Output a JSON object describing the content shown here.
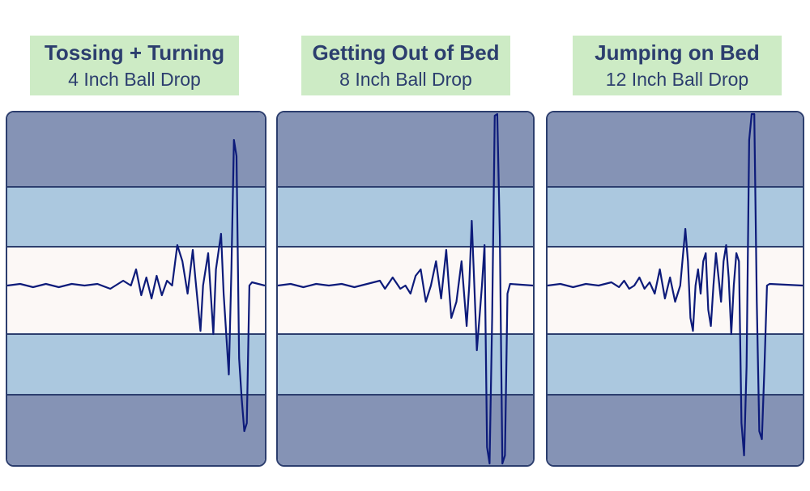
{
  "panels": [
    {
      "title": "Tossing + Turning",
      "subtitle": "4 Inch Ball Drop",
      "spikes": [
        [
          0.0,
          0.0
        ],
        [
          0.05,
          0.01
        ],
        [
          0.1,
          -0.01
        ],
        [
          0.15,
          0.01
        ],
        [
          0.2,
          -0.01
        ],
        [
          0.25,
          0.01
        ],
        [
          0.3,
          0.0
        ],
        [
          0.35,
          0.01
        ],
        [
          0.4,
          -0.02
        ],
        [
          0.45,
          0.03
        ],
        [
          0.48,
          0.0
        ],
        [
          0.5,
          0.1
        ],
        [
          0.52,
          -0.06
        ],
        [
          0.54,
          0.05
        ],
        [
          0.56,
          -0.08
        ],
        [
          0.58,
          0.06
        ],
        [
          0.6,
          -0.06
        ],
        [
          0.62,
          0.03
        ],
        [
          0.64,
          0.0
        ],
        [
          0.66,
          0.25
        ],
        [
          0.68,
          0.15
        ],
        [
          0.7,
          -0.05
        ],
        [
          0.72,
          0.22
        ],
        [
          0.73,
          0.05
        ],
        [
          0.75,
          -0.28
        ],
        [
          0.76,
          0.0
        ],
        [
          0.78,
          0.2
        ],
        [
          0.8,
          -0.3
        ],
        [
          0.81,
          0.1
        ],
        [
          0.83,
          0.32
        ],
        [
          0.84,
          -0.05
        ],
        [
          0.86,
          -0.55
        ],
        [
          0.87,
          0.1
        ],
        [
          0.88,
          0.9
        ],
        [
          0.89,
          0.8
        ],
        [
          0.9,
          -0.45
        ],
        [
          0.91,
          -0.7
        ],
        [
          0.92,
          -0.9
        ],
        [
          0.93,
          -0.85
        ],
        [
          0.94,
          0.0
        ],
        [
          0.95,
          0.02
        ],
        [
          1.0,
          0.0
        ]
      ],
      "spike_length": 1.0
    },
    {
      "title": "Getting Out of Bed",
      "subtitle": "8 Inch Ball Drop",
      "spikes": [
        [
          0.0,
          0.0
        ],
        [
          0.05,
          0.01
        ],
        [
          0.1,
          -0.01
        ],
        [
          0.15,
          0.01
        ],
        [
          0.2,
          0.0
        ],
        [
          0.25,
          0.01
        ],
        [
          0.3,
          -0.01
        ],
        [
          0.35,
          0.01
        ],
        [
          0.4,
          0.03
        ],
        [
          0.42,
          -0.02
        ],
        [
          0.45,
          0.05
        ],
        [
          0.48,
          -0.02
        ],
        [
          0.5,
          0.0
        ],
        [
          0.52,
          -0.05
        ],
        [
          0.54,
          0.06
        ],
        [
          0.56,
          0.1
        ],
        [
          0.58,
          -0.1
        ],
        [
          0.6,
          0.0
        ],
        [
          0.62,
          0.15
        ],
        [
          0.64,
          -0.08
        ],
        [
          0.66,
          0.22
        ],
        [
          0.67,
          0.0
        ],
        [
          0.68,
          -0.2
        ],
        [
          0.7,
          -0.1
        ],
        [
          0.72,
          0.15
        ],
        [
          0.74,
          -0.25
        ],
        [
          0.75,
          0.0
        ],
        [
          0.76,
          0.4
        ],
        [
          0.77,
          0.0
        ],
        [
          0.78,
          -0.4
        ],
        [
          0.79,
          -0.2
        ],
        [
          0.8,
          0.0
        ],
        [
          0.81,
          0.25
        ],
        [
          0.82,
          -1.0
        ],
        [
          0.83,
          -1.1
        ],
        [
          0.84,
          -0.2
        ],
        [
          0.85,
          1.05
        ],
        [
          0.86,
          1.3
        ],
        [
          0.87,
          0.3
        ],
        [
          0.88,
          -1.1
        ],
        [
          0.89,
          -1.05
        ],
        [
          0.9,
          -0.05
        ],
        [
          0.91,
          0.01
        ],
        [
          1.0,
          0.0
        ]
      ],
      "spike_length": 1.0
    },
    {
      "title": "Jumping on Bed",
      "subtitle": "12 Inch Ball Drop",
      "spikes": [
        [
          0.0,
          0.0
        ],
        [
          0.05,
          0.01
        ],
        [
          0.1,
          -0.01
        ],
        [
          0.15,
          0.01
        ],
        [
          0.2,
          0.0
        ],
        [
          0.25,
          0.02
        ],
        [
          0.28,
          -0.01
        ],
        [
          0.3,
          0.03
        ],
        [
          0.32,
          -0.02
        ],
        [
          0.34,
          0.0
        ],
        [
          0.36,
          0.05
        ],
        [
          0.38,
          -0.02
        ],
        [
          0.4,
          0.02
        ],
        [
          0.42,
          -0.05
        ],
        [
          0.44,
          0.1
        ],
        [
          0.46,
          -0.08
        ],
        [
          0.48,
          0.05
        ],
        [
          0.5,
          -0.1
        ],
        [
          0.52,
          0.0
        ],
        [
          0.54,
          0.35
        ],
        [
          0.55,
          0.15
        ],
        [
          0.56,
          -0.2
        ],
        [
          0.57,
          -0.28
        ],
        [
          0.58,
          0.0
        ],
        [
          0.59,
          0.1
        ],
        [
          0.6,
          -0.05
        ],
        [
          0.61,
          0.15
        ],
        [
          0.62,
          0.2
        ],
        [
          0.63,
          -0.15
        ],
        [
          0.64,
          -0.25
        ],
        [
          0.65,
          0.0
        ],
        [
          0.66,
          0.2
        ],
        [
          0.67,
          0.05
        ],
        [
          0.68,
          -0.1
        ],
        [
          0.69,
          0.15
        ],
        [
          0.7,
          0.25
        ],
        [
          0.71,
          0.05
        ],
        [
          0.72,
          -0.3
        ],
        [
          0.73,
          0.0
        ],
        [
          0.74,
          0.2
        ],
        [
          0.75,
          0.15
        ],
        [
          0.76,
          -0.85
        ],
        [
          0.77,
          -1.05
        ],
        [
          0.78,
          -0.5
        ],
        [
          0.79,
          0.9
        ],
        [
          0.8,
          1.2
        ],
        [
          0.81,
          1.15
        ],
        [
          0.82,
          -0.1
        ],
        [
          0.83,
          -0.9
        ],
        [
          0.84,
          -0.95
        ],
        [
          0.85,
          -0.5
        ],
        [
          0.86,
          0.0
        ],
        [
          0.87,
          0.01
        ],
        [
          1.0,
          0.0
        ]
      ],
      "spike_length": 1.0
    }
  ],
  "chart_data": [
    {
      "type": "line",
      "title": "Tossing + Turning",
      "subtitle": "4 Inch Ball Drop",
      "xlabel": "",
      "ylabel": ""
    },
    {
      "type": "line",
      "title": "Getting Out of Bed",
      "subtitle": "8 Inch Ball Drop",
      "xlabel": "",
      "ylabel": ""
    },
    {
      "type": "line",
      "title": "Jumping on Bed",
      "subtitle": "12 Inch Ball Drop",
      "xlabel": "",
      "ylabel": ""
    }
  ],
  "colors": {
    "label_bg": "#cdebc5",
    "label_text": "#2c3e6e",
    "outer_band": "#8593b5",
    "mid_band": "#abc8df",
    "center_band": "#fcf8f6",
    "border": "#2c3e6e",
    "trace": "#0d1b7a"
  }
}
